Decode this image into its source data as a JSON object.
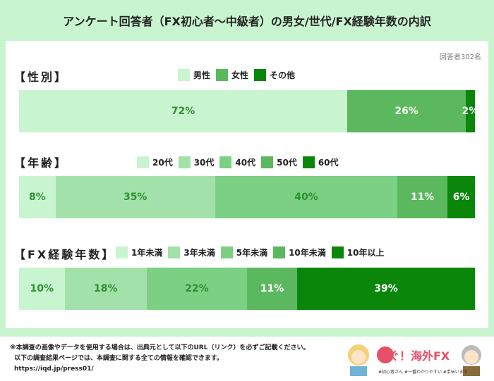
{
  "title": "アンケート回答者（FX初心者〜中級者）の男女/世代/FX経験年数の内訳",
  "respondents": "回答者302名",
  "footer": {
    "line1": "※本調査の画像やデータを使用する場合は、出典元として以下のURL（リンク）を必ずご記載ください。",
    "line2": "以下の調査結果ページでは、本調査に関する全ての情報を確認できます。",
    "line3": "https://iqd.jp/press01/"
  },
  "logo": {
    "text": "稼ぐ！海外FX",
    "tagline": "#初心者さん #一番わかりやすい #手伝います"
  },
  "chart_data": [
    {
      "type": "bar",
      "stacked": true,
      "orientation": "horizontal",
      "title": "【性別】",
      "unit": "%",
      "series": [
        {
          "name": "男性",
          "value": 72,
          "label": "72%",
          "color": "#c8f5d0",
          "text": "#2f8f2f"
        },
        {
          "name": "女性",
          "value": 26,
          "label": "26%",
          "color": "#5cb85f",
          "text": "#ffffff"
        },
        {
          "name": "その他",
          "value": 2,
          "label": "2%",
          "color": "#0a870a",
          "text": "#ffffff"
        }
      ]
    },
    {
      "type": "bar",
      "stacked": true,
      "orientation": "horizontal",
      "title": "【年齢】",
      "unit": "%",
      "series": [
        {
          "name": "20代",
          "value": 8,
          "label": "8%",
          "color": "#c8f5d0",
          "text": "#2f8f2f"
        },
        {
          "name": "30代",
          "value": 35,
          "label": "35%",
          "color": "#a2e2aa",
          "text": "#2f8f2f"
        },
        {
          "name": "40代",
          "value": 40,
          "label": "40%",
          "color": "#7bd084",
          "text": "#2f8f2f"
        },
        {
          "name": "50代",
          "value": 11,
          "label": "11%",
          "color": "#5cb85f",
          "text": "#ffffff"
        },
        {
          "name": "60代",
          "value": 6,
          "label": "6%",
          "color": "#0a870a",
          "text": "#ffffff"
        }
      ]
    },
    {
      "type": "bar",
      "stacked": true,
      "orientation": "horizontal",
      "title": "【FX経験年数】",
      "unit": "%",
      "series": [
        {
          "name": "1年未満",
          "value": 10,
          "label": "10%",
          "color": "#c8f5d0",
          "text": "#2f8f2f"
        },
        {
          "name": "3年未満",
          "value": 18,
          "label": "18%",
          "color": "#a2e2aa",
          "text": "#2f8f2f"
        },
        {
          "name": "5年未満",
          "value": 22,
          "label": "22%",
          "color": "#7bd084",
          "text": "#2f8f2f"
        },
        {
          "name": "10年未満",
          "value": 11,
          "label": "11%",
          "color": "#5cb85f",
          "text": "#ffffff"
        },
        {
          "name": "10年以上",
          "value": 39,
          "label": "39%",
          "color": "#0a870a",
          "text": "#ffffff"
        }
      ]
    }
  ]
}
